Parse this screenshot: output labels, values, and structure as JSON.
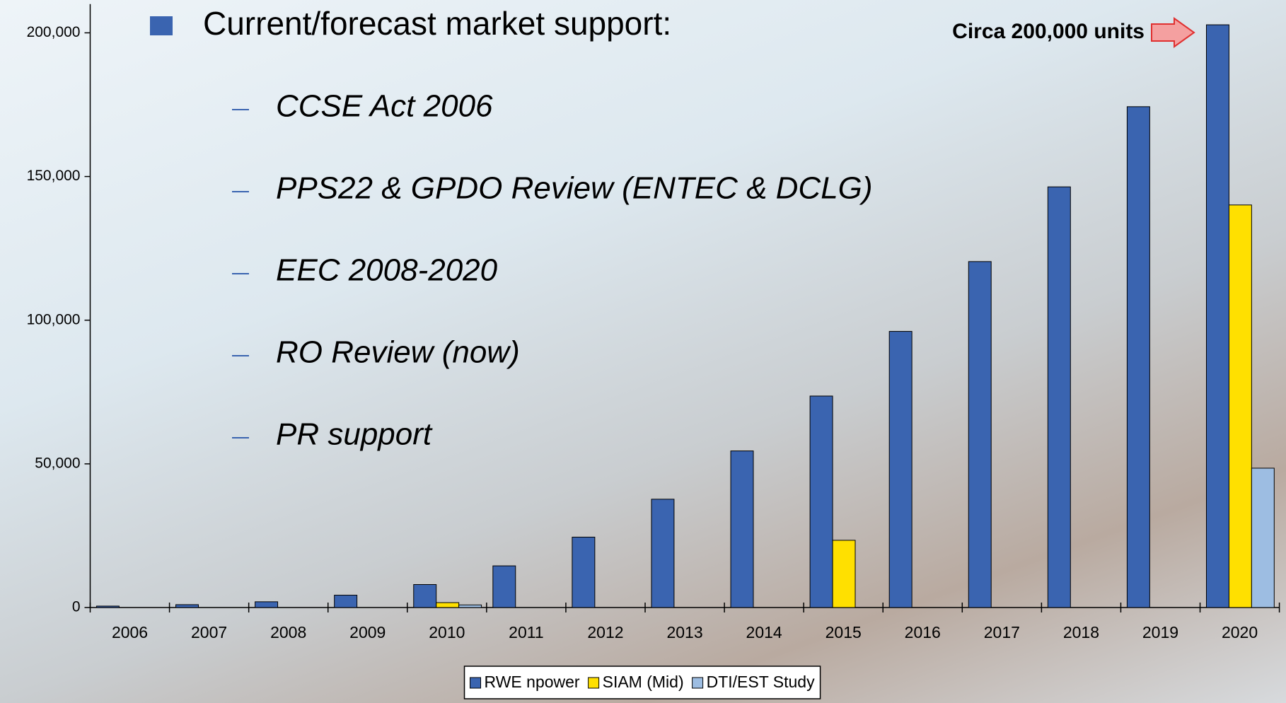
{
  "chart_data": {
    "type": "bar",
    "annotation": "Circa 200,000 units",
    "categories": [
      "2006",
      "2007",
      "2008",
      "2009",
      "2010",
      "2011",
      "2012",
      "2013",
      "2014",
      "2015",
      "2016",
      "2017",
      "2018",
      "2019",
      "2020"
    ],
    "series": [
      {
        "name": "RWE  npower",
        "color": "#3a64b0",
        "values": [
          500,
          1000,
          2000,
          4300,
          8000,
          14500,
          24500,
          37700,
          54500,
          73600,
          96100,
          120400,
          146400,
          174300,
          202800
        ]
      },
      {
        "name": "SIAM (Mid)",
        "color": "#ffe000",
        "values": [
          null,
          null,
          null,
          null,
          1700,
          null,
          null,
          null,
          null,
          23400,
          null,
          null,
          null,
          null,
          140100
        ]
      },
      {
        "name": "DTI/EST Study",
        "color": "#9dbde2",
        "values": [
          null,
          null,
          null,
          null,
          900,
          null,
          null,
          null,
          null,
          null,
          null,
          null,
          null,
          null,
          48500
        ]
      }
    ],
    "ylim": [
      0,
      210000
    ],
    "yticks": [
      {
        "value": 0,
        "label": "0"
      },
      {
        "value": 50000,
        "label": "50,000"
      },
      {
        "value": 100000,
        "label": "100,000"
      },
      {
        "value": 150000,
        "label": "150,000"
      },
      {
        "value": 200000,
        "label": "200,000"
      }
    ],
    "legend": "bottom"
  },
  "text_panel": {
    "heading": "Current/forecast market support:",
    "items": [
      "CCSE Act 2006",
      "PPS22 & GPDO Review (ENTEC & DCLG)",
      "EEC 2008-2020",
      "RO Review (now)",
      "PR support"
    ]
  }
}
